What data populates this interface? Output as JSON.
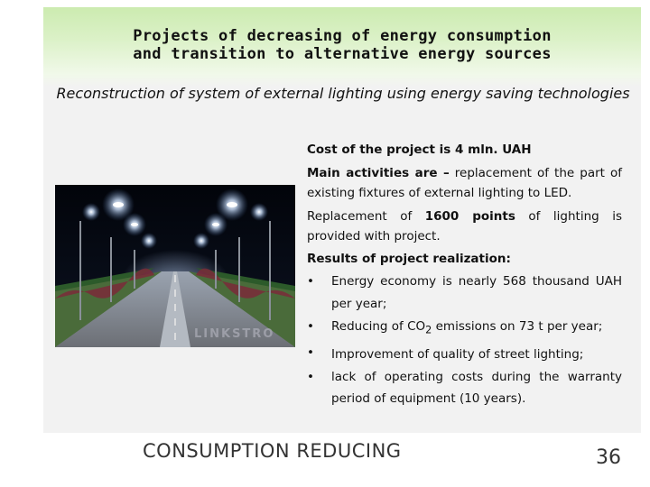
{
  "header": {
    "title_line1": "Projects of decreasing of energy consumption",
    "title_line2": "and transition to alternative energy sources"
  },
  "subtitle": "Reconstruction of system of external lighting using energy saving technologies",
  "photo": {
    "watermark": "LINKSTRO"
  },
  "content": {
    "cost": "Cost of the project is 4 mln. UAH",
    "activities_label": "Main activities are –",
    "activities_text": " replacement of the part of existing fixtures of external lighting to LED.",
    "replacement_pre": "Replacement of ",
    "replacement_bold": "1600 points",
    "replacement_post": " of lighting is provided with project.",
    "results_label": "Results of project realization:",
    "bullet_char": "•",
    "bullets": [
      "Energy economy is nearly  568 thousand UAH per year;",
      "Reducing of CO",
      "Improvement of quality of street lighting;",
      "lack of operating costs during the warranty period of equipment (10 years)."
    ],
    "co2_sub": "2",
    "co2_rest": " emissions on 73 t per year;"
  },
  "footer": {
    "label": "CONSUMPTION REDUCING",
    "page_number": "36"
  }
}
